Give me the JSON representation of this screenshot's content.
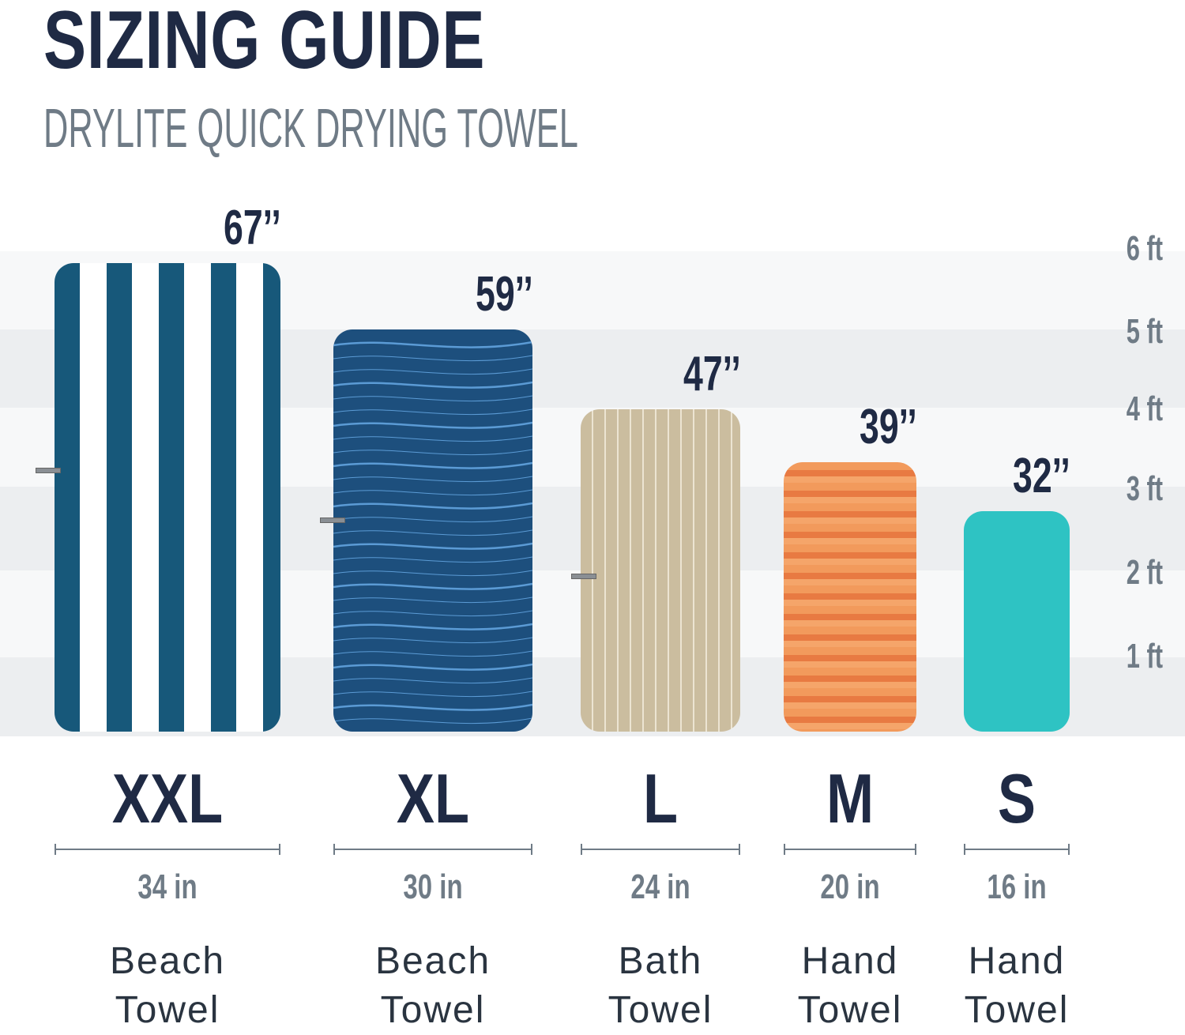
{
  "header": {
    "title": "SIZING GUIDE",
    "subtitle": "DRYLITE QUICK DRYING TOWEL"
  },
  "colors": {
    "navy_text": "#1f2a44",
    "gray_text": "#6f7b86",
    "band_light": "#f7f8f9",
    "band_dark": "#eceef0"
  },
  "chart_data": {
    "type": "bar",
    "categories": [
      "XXL",
      "XL",
      "L",
      "M",
      "S"
    ],
    "length_labels": [
      "67’’",
      "59’’",
      "47’’",
      "39’’",
      "32’’"
    ],
    "length_in": [
      67,
      59,
      47,
      39,
      32
    ],
    "width_in": [
      34,
      30,
      24,
      20,
      16
    ],
    "width_labels": [
      "34 in",
      "30 in",
      "24 in",
      "20 in",
      "16 in"
    ],
    "types": [
      [
        "Beach",
        "Towel"
      ],
      [
        "Beach",
        "Towel"
      ],
      [
        "Bath",
        "Towel"
      ],
      [
        "Hand",
        "Towel"
      ],
      [
        "Hand",
        "Towel"
      ]
    ],
    "towel_colors": [
      "#17587a",
      "#1d4f7d",
      "#cbbd9f",
      "#f08a4f",
      "#2ec3c3"
    ],
    "towel_patterns": [
      "vertical-stripes",
      "waves",
      "wavy-lines",
      "mottled",
      "solid"
    ],
    "y_axis_ticks": [
      "1 ft",
      "2 ft",
      "3 ft",
      "4 ft",
      "5 ft",
      "6 ft"
    ],
    "grid": true
  }
}
